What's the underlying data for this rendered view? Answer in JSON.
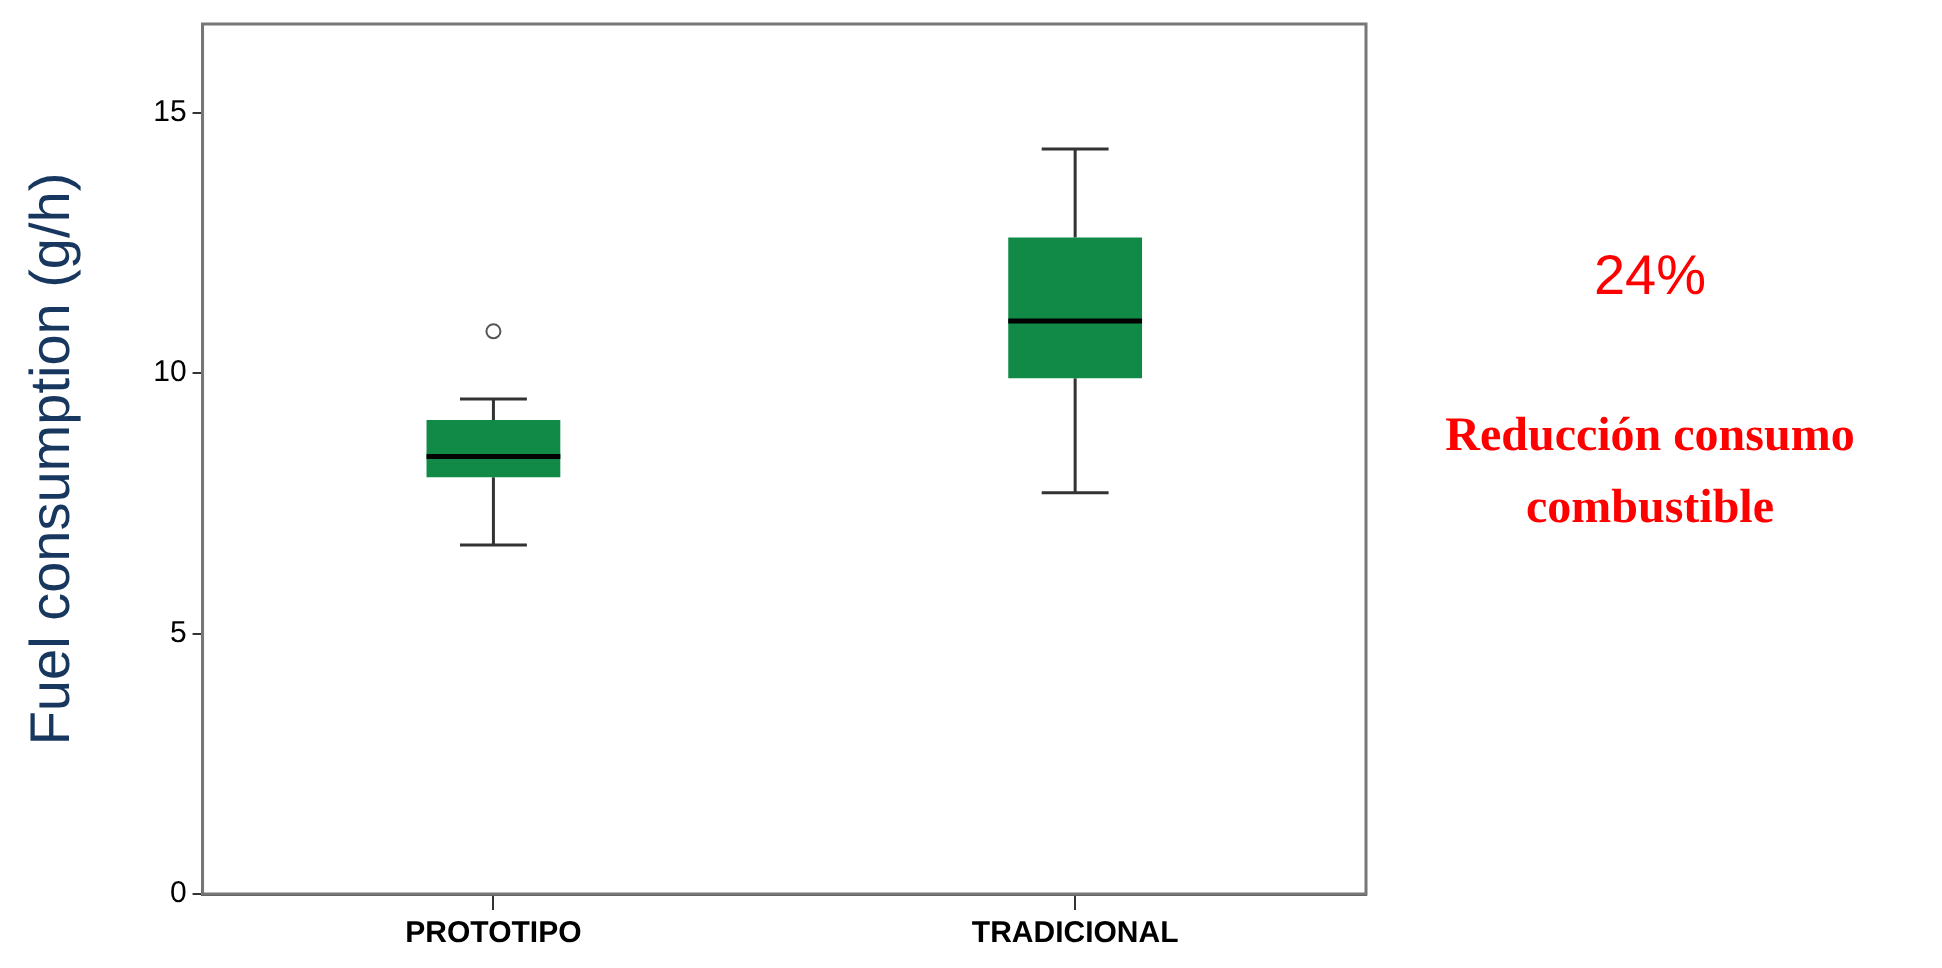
{
  "chart_data": {
    "type": "box",
    "ylabel": "Fuel consumption (g/h)",
    "categories": [
      "PROTOTIPO",
      "TRADICIONAL"
    ],
    "color": "#118a48",
    "boxes": [
      {
        "low": 6.7,
        "q1": 8.0,
        "median": 8.4,
        "q3": 9.1,
        "high": 9.5,
        "outliers": [
          10.8
        ]
      },
      {
        "low": 7.7,
        "q1": 9.9,
        "median": 11.0,
        "q3": 12.6,
        "high": 14.3
      }
    ],
    "ylim": [
      0,
      16.7
    ],
    "yticks": [
      0,
      5,
      10,
      15
    ],
    "grid": false,
    "legend": false,
    "annotations": [
      "24%",
      "Reducción consumo combustible"
    ]
  }
}
